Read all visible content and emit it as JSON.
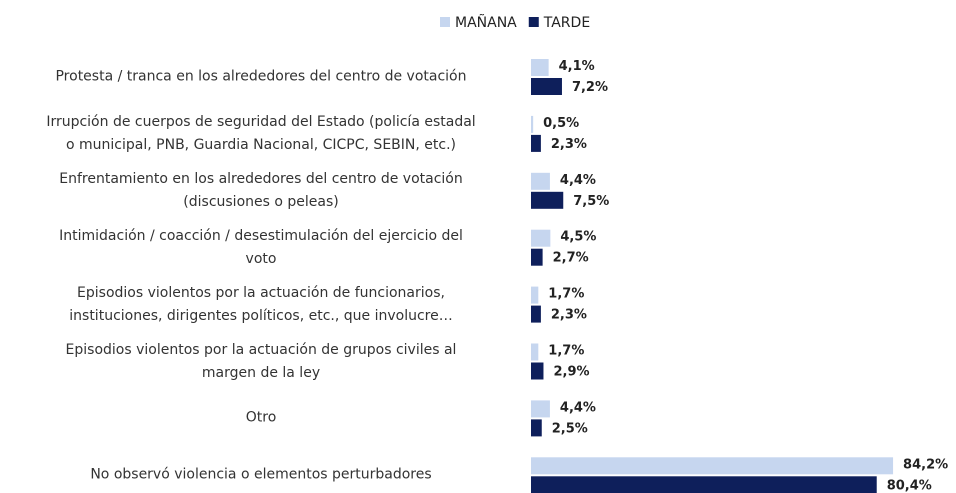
{
  "chart_data": {
    "type": "barh",
    "categories": [
      "Protesta / tranca en los alrededores del centro de votación",
      "Irrupción de cuerpos de seguridad del Estado (policía estadal\no municipal, PNB, Guardia Nacional, CICPC, SEBIN, etc.)",
      "Enfrentamiento en los alrededores del centro de votación\n(discusiones o peleas)",
      "Intimidación / coacción / desestimulación del ejercicio del\nvoto",
      "Episodios violentos por la actuación de funcionarios,\ninstituciones, dirigentes políticos, etc., que involucre…",
      "Episodios violentos por la actuación de grupos civiles al\nmargen de la ley",
      "Otro",
      "No observó violencia o elementos perturbadores"
    ],
    "series": [
      {
        "name": "MAÑANA",
        "color": "#c6d6ef",
        "values": [
          4.1,
          0.5,
          4.4,
          4.5,
          1.7,
          1.7,
          4.4,
          84.2
        ],
        "value_labels": [
          "4,1%",
          "0,5%",
          "4,4%",
          "4,5%",
          "1,7%",
          "1,7%",
          "4,4%",
          "84,2%"
        ]
      },
      {
        "name": "TARDE",
        "color": "#0e1f5b",
        "values": [
          7.2,
          2.3,
          7.5,
          2.7,
          2.3,
          2.9,
          2.5,
          80.4
        ],
        "value_labels": [
          "7,2%",
          "2,3%",
          "7,5%",
          "2,7%",
          "2,3%",
          "2,9%",
          "2,5%",
          "80,4%"
        ]
      }
    ],
    "legend": "top"
  }
}
